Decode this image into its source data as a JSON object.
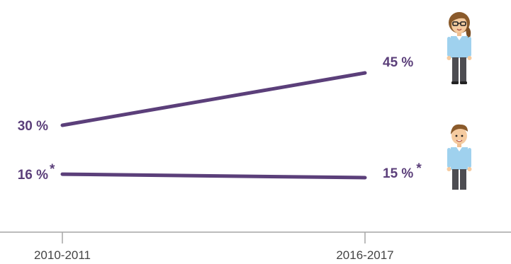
{
  "chart_data": {
    "type": "line",
    "x": [
      "2010-2011",
      "2016-2017"
    ],
    "series": [
      {
        "values": [
          30,
          45
        ],
        "data_labels": [
          "30 %",
          "45 %"
        ],
        "footnote_marks": [
          "",
          ""
        ],
        "icon": "woman-icon",
        "color": "#5b3f7a"
      },
      {
        "values": [
          16,
          15
        ],
        "data_labels": [
          "16 %",
          "15 %"
        ],
        "footnote_marks": [
          "*",
          "*"
        ],
        "icon": "man-icon",
        "color": "#5b3f7a"
      }
    ],
    "ylim": [
      0,
      60
    ],
    "grid": false,
    "legend": "none"
  },
  "colors": {
    "line": "#5b3f7a",
    "label": "#5b3f7a",
    "axis": "#a6a6a6",
    "tick_text": "#444444"
  }
}
